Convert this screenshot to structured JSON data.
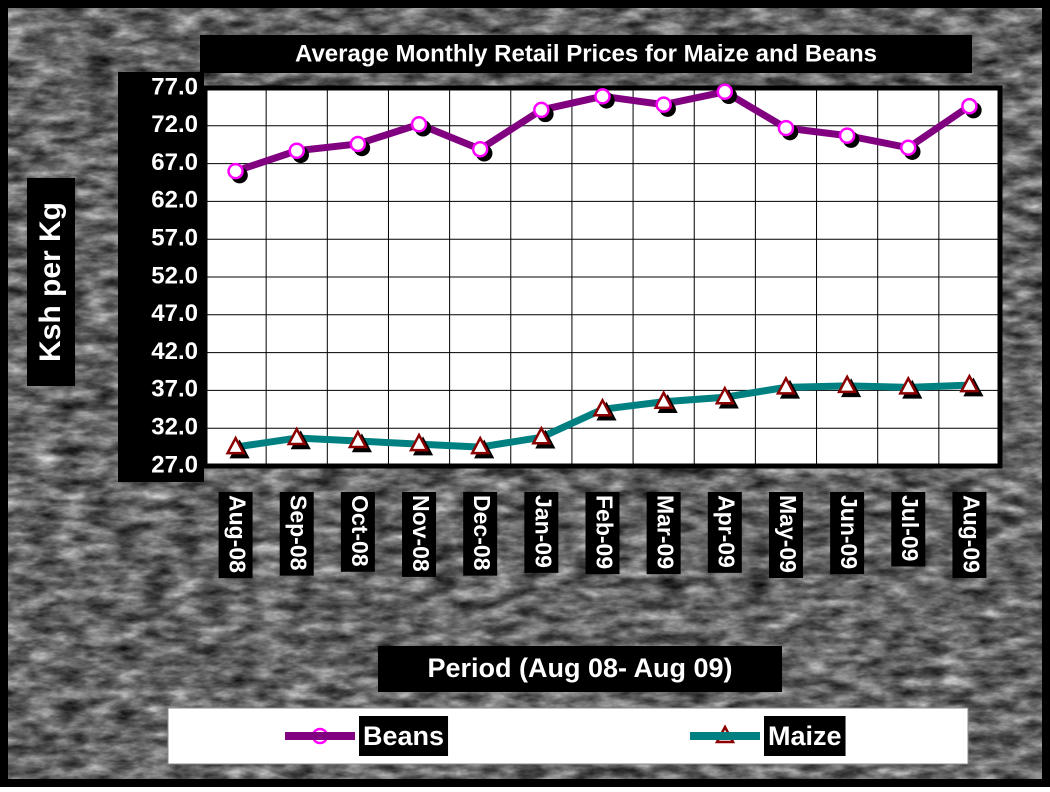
{
  "chart_data": {
    "type": "line",
    "title": "Average Monthly Retail Prices for Maize and Beans",
    "x_label": "Period (Aug 08- Aug 09)",
    "y_label": "Ksh per Kg",
    "categories": [
      "Aug-08",
      "Sep-08",
      "Oct-08",
      "Nov-08",
      "Dec-08",
      "Jan-09",
      "Feb-09",
      "Mar-09",
      "Apr-09",
      "May-09",
      "Jun-09",
      "Jul-09",
      "Aug-09"
    ],
    "series": [
      {
        "name": "Beans",
        "color": "#800080",
        "marker": "circle",
        "values": [
          66.0,
          68.7,
          69.6,
          72.2,
          68.9,
          74.1,
          75.9,
          74.8,
          76.5,
          71.7,
          70.7,
          69.1,
          74.6
        ]
      },
      {
        "name": "Maize",
        "color": "#008080",
        "marker": "triangle",
        "values": [
          29.5,
          30.7,
          30.3,
          29.9,
          29.5,
          30.8,
          34.5,
          35.5,
          36.1,
          37.4,
          37.6,
          37.4,
          37.7
        ]
      }
    ],
    "ylim": [
      27,
      77
    ],
    "yticks": [
      {
        "value": 27,
        "label": "27.0"
      },
      {
        "value": 32,
        "label": "32.0"
      },
      {
        "value": 37,
        "label": "37.0"
      },
      {
        "value": 42,
        "label": "42.0"
      },
      {
        "value": 47,
        "label": "47.0"
      },
      {
        "value": 52,
        "label": "52.0"
      },
      {
        "value": 57,
        "label": "57.0"
      },
      {
        "value": 62,
        "label": "62.0"
      },
      {
        "value": 67,
        "label": "67.0"
      },
      {
        "value": 72,
        "label": "72.0"
      },
      {
        "value": 77,
        "label": "77.0"
      }
    ],
    "grid": true,
    "legend": "bottom"
  }
}
